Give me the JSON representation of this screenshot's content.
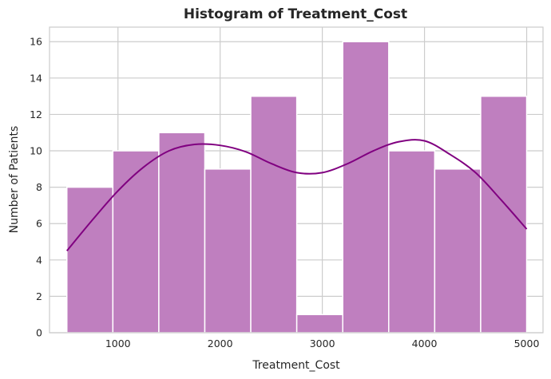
{
  "chart_data": {
    "type": "bar",
    "title": "Histogram of Treatment_Cost",
    "xlabel": "Treatment_Cost",
    "ylabel": "Number of Patients",
    "xlim": [
      330,
      5160
    ],
    "ylim": [
      0,
      16.8
    ],
    "xticks": [
      1000,
      2000,
      3000,
      4000,
      5000
    ],
    "yticks": [
      0,
      2,
      4,
      6,
      8,
      10,
      12,
      14,
      16
    ],
    "grid": true,
    "bin_edges": [
      500,
      950,
      1400,
      1850,
      2300,
      2750,
      3200,
      3650,
      4100,
      4550,
      5000
    ],
    "values": [
      8,
      10,
      11,
      9,
      13,
      1,
      16,
      10,
      9,
      13
    ],
    "kde_curve": {
      "x": [
        500,
        750,
        1000,
        1250,
        1500,
        1750,
        2000,
        2250,
        2500,
        2750,
        3000,
        3250,
        3500,
        3750,
        4000,
        4250,
        4500,
        4750,
        5000
      ],
      "y": [
        4.5,
        6.2,
        7.8,
        9.1,
        10.0,
        10.35,
        10.3,
        9.95,
        9.3,
        8.8,
        8.8,
        9.3,
        10.0,
        10.5,
        10.55,
        9.8,
        8.8,
        7.3,
        5.7
      ]
    },
    "colors": {
      "bar_fill": "#bf7fbf",
      "bar_edge": "#ffffff",
      "kde_line": "#800080",
      "grid": "#cccccc",
      "axes_frame": "#cccccc"
    }
  }
}
